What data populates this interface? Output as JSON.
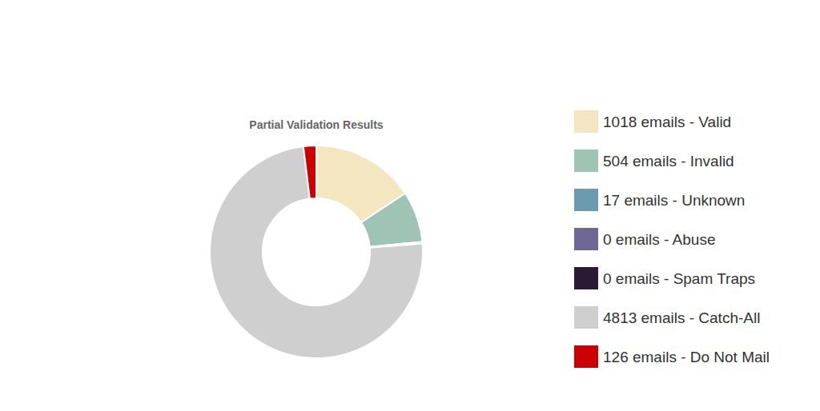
{
  "chart_data": {
    "type": "pie",
    "title": "Partial Validation Results",
    "categories": [
      "1018 emails - Valid",
      "504 emails - Invalid",
      "17 emails - Unknown",
      "0 emails - Abuse",
      "0 emails - Spam Traps",
      "4813 emails - Catch-All",
      "126 emails - Do Not Mail"
    ],
    "values": [
      1018,
      504,
      17,
      0,
      0,
      4813,
      126
    ],
    "colors": [
      "#f3e6c0",
      "#9fc4b6",
      "#6b9bb0",
      "#6e6796",
      "#2b1a33",
      "#cfcfcf",
      "#cc0000"
    ],
    "legend": "right"
  }
}
